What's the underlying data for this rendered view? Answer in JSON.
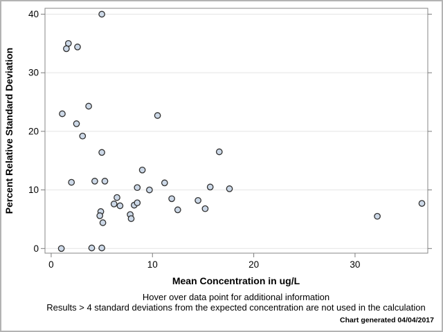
{
  "page": {
    "background": "#ffffff",
    "outer_border_color": "#b3b3b3"
  },
  "chart_data": {
    "type": "scatter",
    "title": "",
    "xlabel": "Mean Concentration in ug/L",
    "ylabel": "Percent Relative Standard Deviation",
    "xlim": [
      -0.61,
      37.18
    ],
    "ylim": [
      -0.79,
      41.0
    ],
    "x_ticks": [
      0,
      10,
      20,
      30
    ],
    "y_ticks": [
      0,
      10,
      20,
      30,
      40
    ],
    "grid": "horizontal-only",
    "legend": "none",
    "marker": {
      "shape": "circle",
      "fill": "#ccd8e7",
      "stroke": "#2f2f2f",
      "radius": 4.2
    },
    "colors": {
      "gridline": "#e4e4e4",
      "plot_border": "#868686",
      "tick": "#7a7a7a",
      "text": "#000000"
    },
    "points": [
      [
        5.0,
        40.0
      ],
      [
        1.7,
        35.0
      ],
      [
        1.5,
        34.1
      ],
      [
        2.6,
        34.4
      ],
      [
        3.7,
        24.3
      ],
      [
        1.1,
        23.0
      ],
      [
        10.5,
        22.7
      ],
      [
        2.5,
        21.3
      ],
      [
        3.1,
        19.2
      ],
      [
        5.0,
        16.4
      ],
      [
        16.6,
        16.5
      ],
      [
        9.0,
        13.4
      ],
      [
        2.0,
        11.3
      ],
      [
        4.3,
        11.5
      ],
      [
        5.3,
        11.5
      ],
      [
        11.2,
        11.2
      ],
      [
        8.5,
        10.4
      ],
      [
        9.7,
        10.0
      ],
      [
        15.7,
        10.5
      ],
      [
        17.6,
        10.2
      ],
      [
        6.5,
        8.7
      ],
      [
        6.2,
        7.6
      ],
      [
        6.8,
        7.3
      ],
      [
        8.2,
        7.4
      ],
      [
        8.5,
        7.8
      ],
      [
        11.9,
        8.5
      ],
      [
        14.5,
        8.2
      ],
      [
        4.9,
        6.3
      ],
      [
        4.8,
        5.6
      ],
      [
        5.1,
        4.4
      ],
      [
        7.8,
        5.8
      ],
      [
        7.9,
        5.1
      ],
      [
        12.5,
        6.6
      ],
      [
        15.2,
        6.8
      ],
      [
        1.0,
        0.0
      ],
      [
        4.0,
        0.1
      ],
      [
        5.0,
        0.1
      ],
      [
        32.2,
        5.5
      ],
      [
        36.6,
        7.7
      ]
    ]
  },
  "footnotes": {
    "hover": "Hover over data point for additional information",
    "results": "Results > 4 standard deviations from the expected concentration are not used in the calculation",
    "generated": "Chart generated 04/04/2017"
  }
}
